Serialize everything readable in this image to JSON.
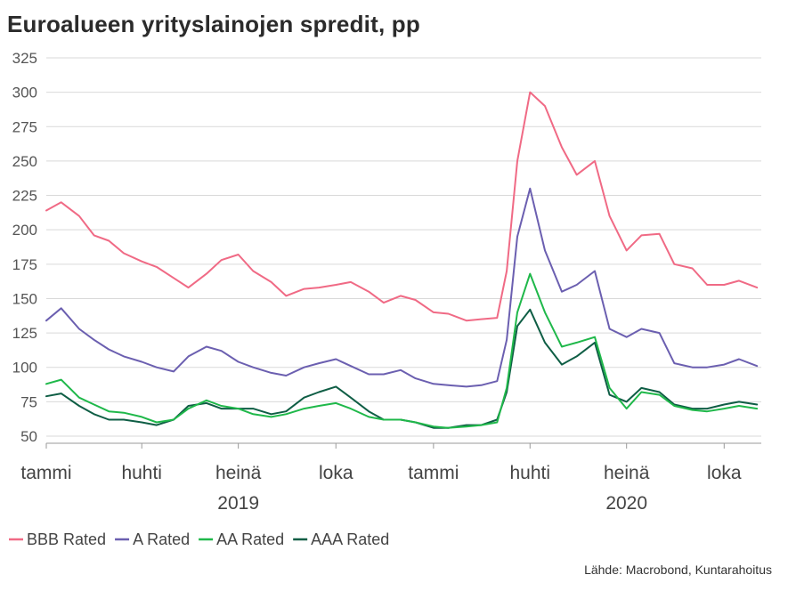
{
  "chart_data": {
    "type": "line",
    "title": "Euroalueen yrityslainojen spredit, pp",
    "source": "Lähde: Macrobond, Kuntarahoitus",
    "ylim": [
      50,
      325
    ],
    "yticks": [
      50,
      75,
      100,
      125,
      150,
      175,
      200,
      225,
      250,
      275,
      300,
      325
    ],
    "xlim": [
      "2019-01-01",
      "2020-11-05"
    ],
    "xticks": [
      {
        "date": "2019-01-01",
        "label": "tammi"
      },
      {
        "date": "2019-04-01",
        "label": "huhti"
      },
      {
        "date": "2019-07-01",
        "label": "heinä"
      },
      {
        "date": "2019-10-01",
        "label": "loka"
      },
      {
        "date": "2020-01-01",
        "label": "tammi"
      },
      {
        "date": "2020-04-01",
        "label": "huhti"
      },
      {
        "date": "2020-07-01",
        "label": "heinä"
      },
      {
        "date": "2020-10-01",
        "label": "loka"
      }
    ],
    "years": [
      {
        "date": "2019-07-01",
        "label": "2019"
      },
      {
        "date": "2020-07-01",
        "label": "2020"
      }
    ],
    "grid": true,
    "legend_position": "bottom-left",
    "x": [
      "2019-01-01",
      "2019-01-15",
      "2019-02-01",
      "2019-02-15",
      "2019-03-01",
      "2019-03-15",
      "2019-04-01",
      "2019-04-15",
      "2019-05-01",
      "2019-05-15",
      "2019-06-01",
      "2019-06-15",
      "2019-07-01",
      "2019-07-15",
      "2019-08-01",
      "2019-08-15",
      "2019-09-01",
      "2019-09-15",
      "2019-10-01",
      "2019-10-15",
      "2019-11-01",
      "2019-11-15",
      "2019-12-01",
      "2019-12-15",
      "2020-01-01",
      "2020-01-15",
      "2020-02-01",
      "2020-02-15",
      "2020-03-01",
      "2020-03-10",
      "2020-03-20",
      "2020-04-01",
      "2020-04-15",
      "2020-05-01",
      "2020-05-15",
      "2020-06-01",
      "2020-06-15",
      "2020-07-01",
      "2020-07-15",
      "2020-08-01",
      "2020-08-15",
      "2020-09-01",
      "2020-09-15",
      "2020-10-01",
      "2020-10-15",
      "2020-11-01"
    ],
    "series": [
      {
        "name": "BBB Rated",
        "color": "#f06a85",
        "values": [
          214,
          220,
          210,
          196,
          192,
          183,
          177,
          173,
          165,
          158,
          168,
          178,
          182,
          170,
          162,
          152,
          157,
          158,
          160,
          162,
          155,
          147,
          152,
          149,
          140,
          139,
          134,
          135,
          136,
          170,
          250,
          300,
          290,
          260,
          240,
          250,
          210,
          185,
          196,
          197,
          175,
          172,
          160,
          160,
          163,
          158
        ]
      },
      {
        "name": "A Rated",
        "color": "#6b5fb0",
        "values": [
          134,
          143,
          128,
          120,
          113,
          108,
          104,
          100,
          97,
          108,
          115,
          112,
          104,
          100,
          96,
          94,
          100,
          103,
          106,
          101,
          95,
          95,
          98,
          92,
          88,
          87,
          86,
          87,
          90,
          120,
          195,
          230,
          185,
          155,
          160,
          170,
          128,
          122,
          128,
          125,
          103,
          100,
          100,
          102,
          106,
          101
        ]
      },
      {
        "name": "AA Rated",
        "color": "#1fb84a",
        "values": [
          88,
          91,
          78,
          73,
          68,
          67,
          64,
          60,
          62,
          70,
          76,
          72,
          70,
          66,
          64,
          66,
          70,
          72,
          74,
          70,
          64,
          62,
          62,
          60,
          57,
          56,
          57,
          58,
          60,
          85,
          140,
          168,
          140,
          115,
          118,
          122,
          85,
          70,
          82,
          80,
          72,
          69,
          68,
          70,
          72,
          70
        ]
      },
      {
        "name": "AAA Rated",
        "color": "#0f5e45",
        "values": [
          79,
          81,
          72,
          66,
          62,
          62,
          60,
          58,
          62,
          72,
          74,
          70,
          70,
          70,
          66,
          68,
          78,
          82,
          86,
          78,
          68,
          62,
          62,
          60,
          56,
          56,
          58,
          58,
          62,
          82,
          130,
          142,
          118,
          102,
          108,
          118,
          80,
          75,
          85,
          82,
          73,
          70,
          70,
          73,
          75,
          73
        ]
      }
    ]
  }
}
